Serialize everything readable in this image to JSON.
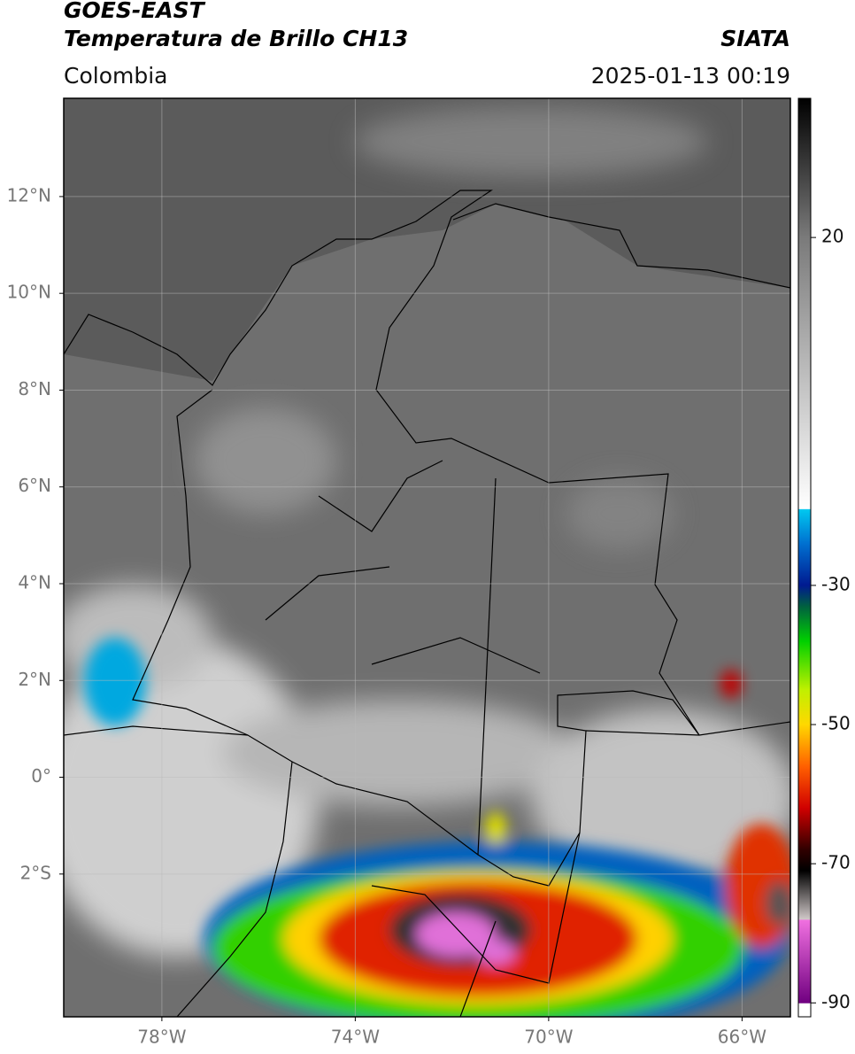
{
  "header": {
    "title": "GOES-EAST",
    "subtitle": "Temperatura de Brillo CH13",
    "source": "SIATA",
    "region": "Colombia",
    "datetime": "2025-01-13 00:19"
  },
  "map": {
    "xlim": [
      -80.03,
      -65.0
    ],
    "ylim": [
      -4.95,
      14.03
    ],
    "xticks": [
      {
        "value": -78,
        "label": "78°W"
      },
      {
        "value": -74,
        "label": "74°W"
      },
      {
        "value": -70,
        "label": "70°W"
      },
      {
        "value": -66,
        "label": "66°W"
      }
    ],
    "yticks": [
      {
        "value": 12,
        "label": "12°N"
      },
      {
        "value": 10,
        "label": "10°N"
      },
      {
        "value": 8,
        "label": "8°N"
      },
      {
        "value": 6,
        "label": "6°N"
      },
      {
        "value": 4,
        "label": "4°N"
      },
      {
        "value": 2,
        "label": "2°N"
      },
      {
        "value": 0,
        "label": "0°"
      },
      {
        "value": -2,
        "label": "2°S"
      }
    ],
    "grid": true
  },
  "colorbar": {
    "vlim": [
      -92,
      40
    ],
    "ticks": [
      20,
      -30,
      -50,
      -70,
      -90
    ],
    "colormap": [
      {
        "value": 40,
        "color": "#000000"
      },
      {
        "value": 20,
        "color": "#7a7a7a"
      },
      {
        "value": -19,
        "color": "#ffffff"
      },
      {
        "value": -19.1,
        "color": "#00c8f0"
      },
      {
        "value": -24,
        "color": "#0070d0"
      },
      {
        "value": -30,
        "color": "#001a90"
      },
      {
        "value": -33,
        "color": "#006040"
      },
      {
        "value": -38,
        "color": "#00d000"
      },
      {
        "value": -45,
        "color": "#c0f000"
      },
      {
        "value": -50,
        "color": "#ffd800"
      },
      {
        "value": -56,
        "color": "#ff6000"
      },
      {
        "value": -62,
        "color": "#d00000"
      },
      {
        "value": -68,
        "color": "#300000"
      },
      {
        "value": -71,
        "color": "#000000"
      },
      {
        "value": -78,
        "color": "#d0c8c8"
      },
      {
        "value": -78.1,
        "color": "#f070e0"
      },
      {
        "value": -90,
        "color": "#700080"
      },
      {
        "value": -90.1,
        "color": "#ffffff"
      }
    ]
  }
}
